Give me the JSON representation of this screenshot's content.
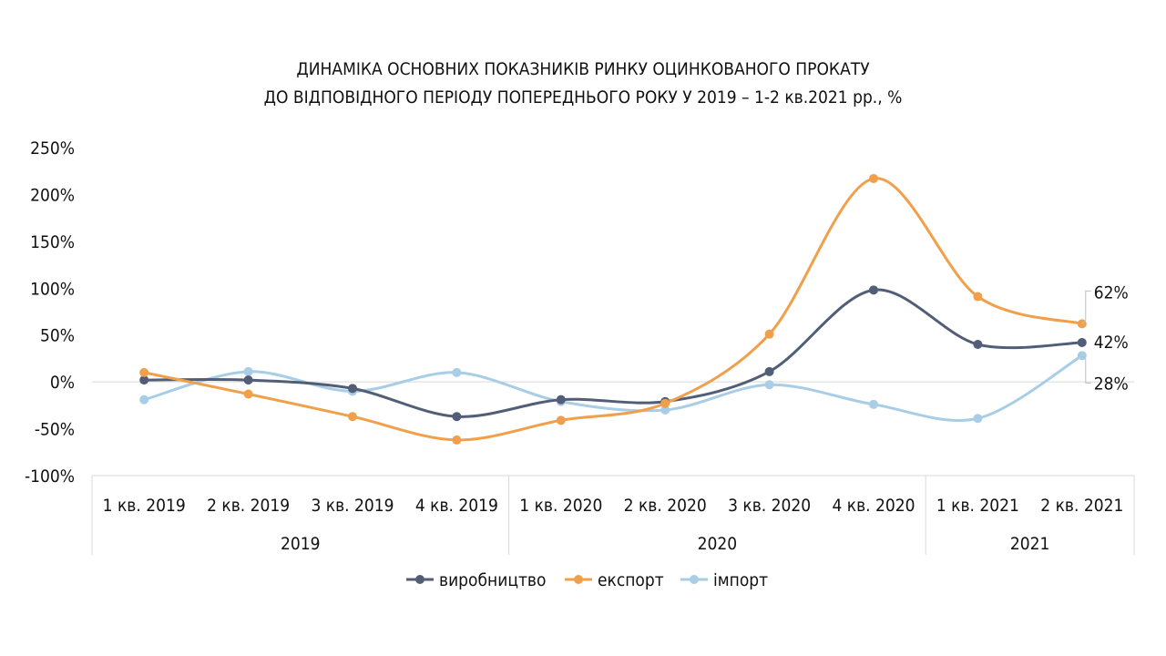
{
  "chart_data": {
    "type": "line",
    "title_lines": [
      "ДИНАМІКА ОСНОВНИХ ПОКАЗНИКІВ РИНКУ ОЦИНКОВАНОГО ПРОКАТУ",
      "ДО ВІДПОВІДНОГО ПЕРІОДУ ПОПЕРЕДНЬОГО РОКУ У 2019 – 1-2 кв.2021 рр., %"
    ],
    "categories": [
      "1 кв. 2019",
      "2 кв. 2019",
      "3 кв. 2019",
      "4 кв. 2019",
      "1 кв. 2020",
      "2 кв. 2020",
      "3 кв. 2020",
      "4 кв. 2020",
      "1 кв. 2021",
      "2 кв. 2021"
    ],
    "year_groups": [
      {
        "label": "2019",
        "count": 4
      },
      {
        "label": "2020",
        "count": 4
      },
      {
        "label": "2021",
        "count": 2
      }
    ],
    "yticks": [
      "250%",
      "200%",
      "150%",
      "100%",
      "50%",
      "0%",
      "-50%",
      "-100%"
    ],
    "ylim": [
      -100,
      250
    ],
    "smooth": true,
    "series": [
      {
        "name": "виробництво",
        "color": "#525e77",
        "values": [
          2,
          2,
          -7,
          -37,
          -19,
          -21,
          11,
          98,
          40,
          42
        ]
      },
      {
        "name": "експорт",
        "color": "#f0a04b",
        "values": [
          10,
          -13,
          -37,
          -62,
          -41,
          -23,
          51,
          217,
          91,
          62
        ]
      },
      {
        "name": "імпорт",
        "color": "#a8cde6",
        "values": [
          -19,
          11,
          -10,
          10,
          -21,
          -30,
          -3,
          -24,
          -39,
          28
        ]
      }
    ],
    "data_labels": [
      "62%",
      "42%",
      "28%"
    ],
    "legend_position": "bottom",
    "grid": false
  }
}
